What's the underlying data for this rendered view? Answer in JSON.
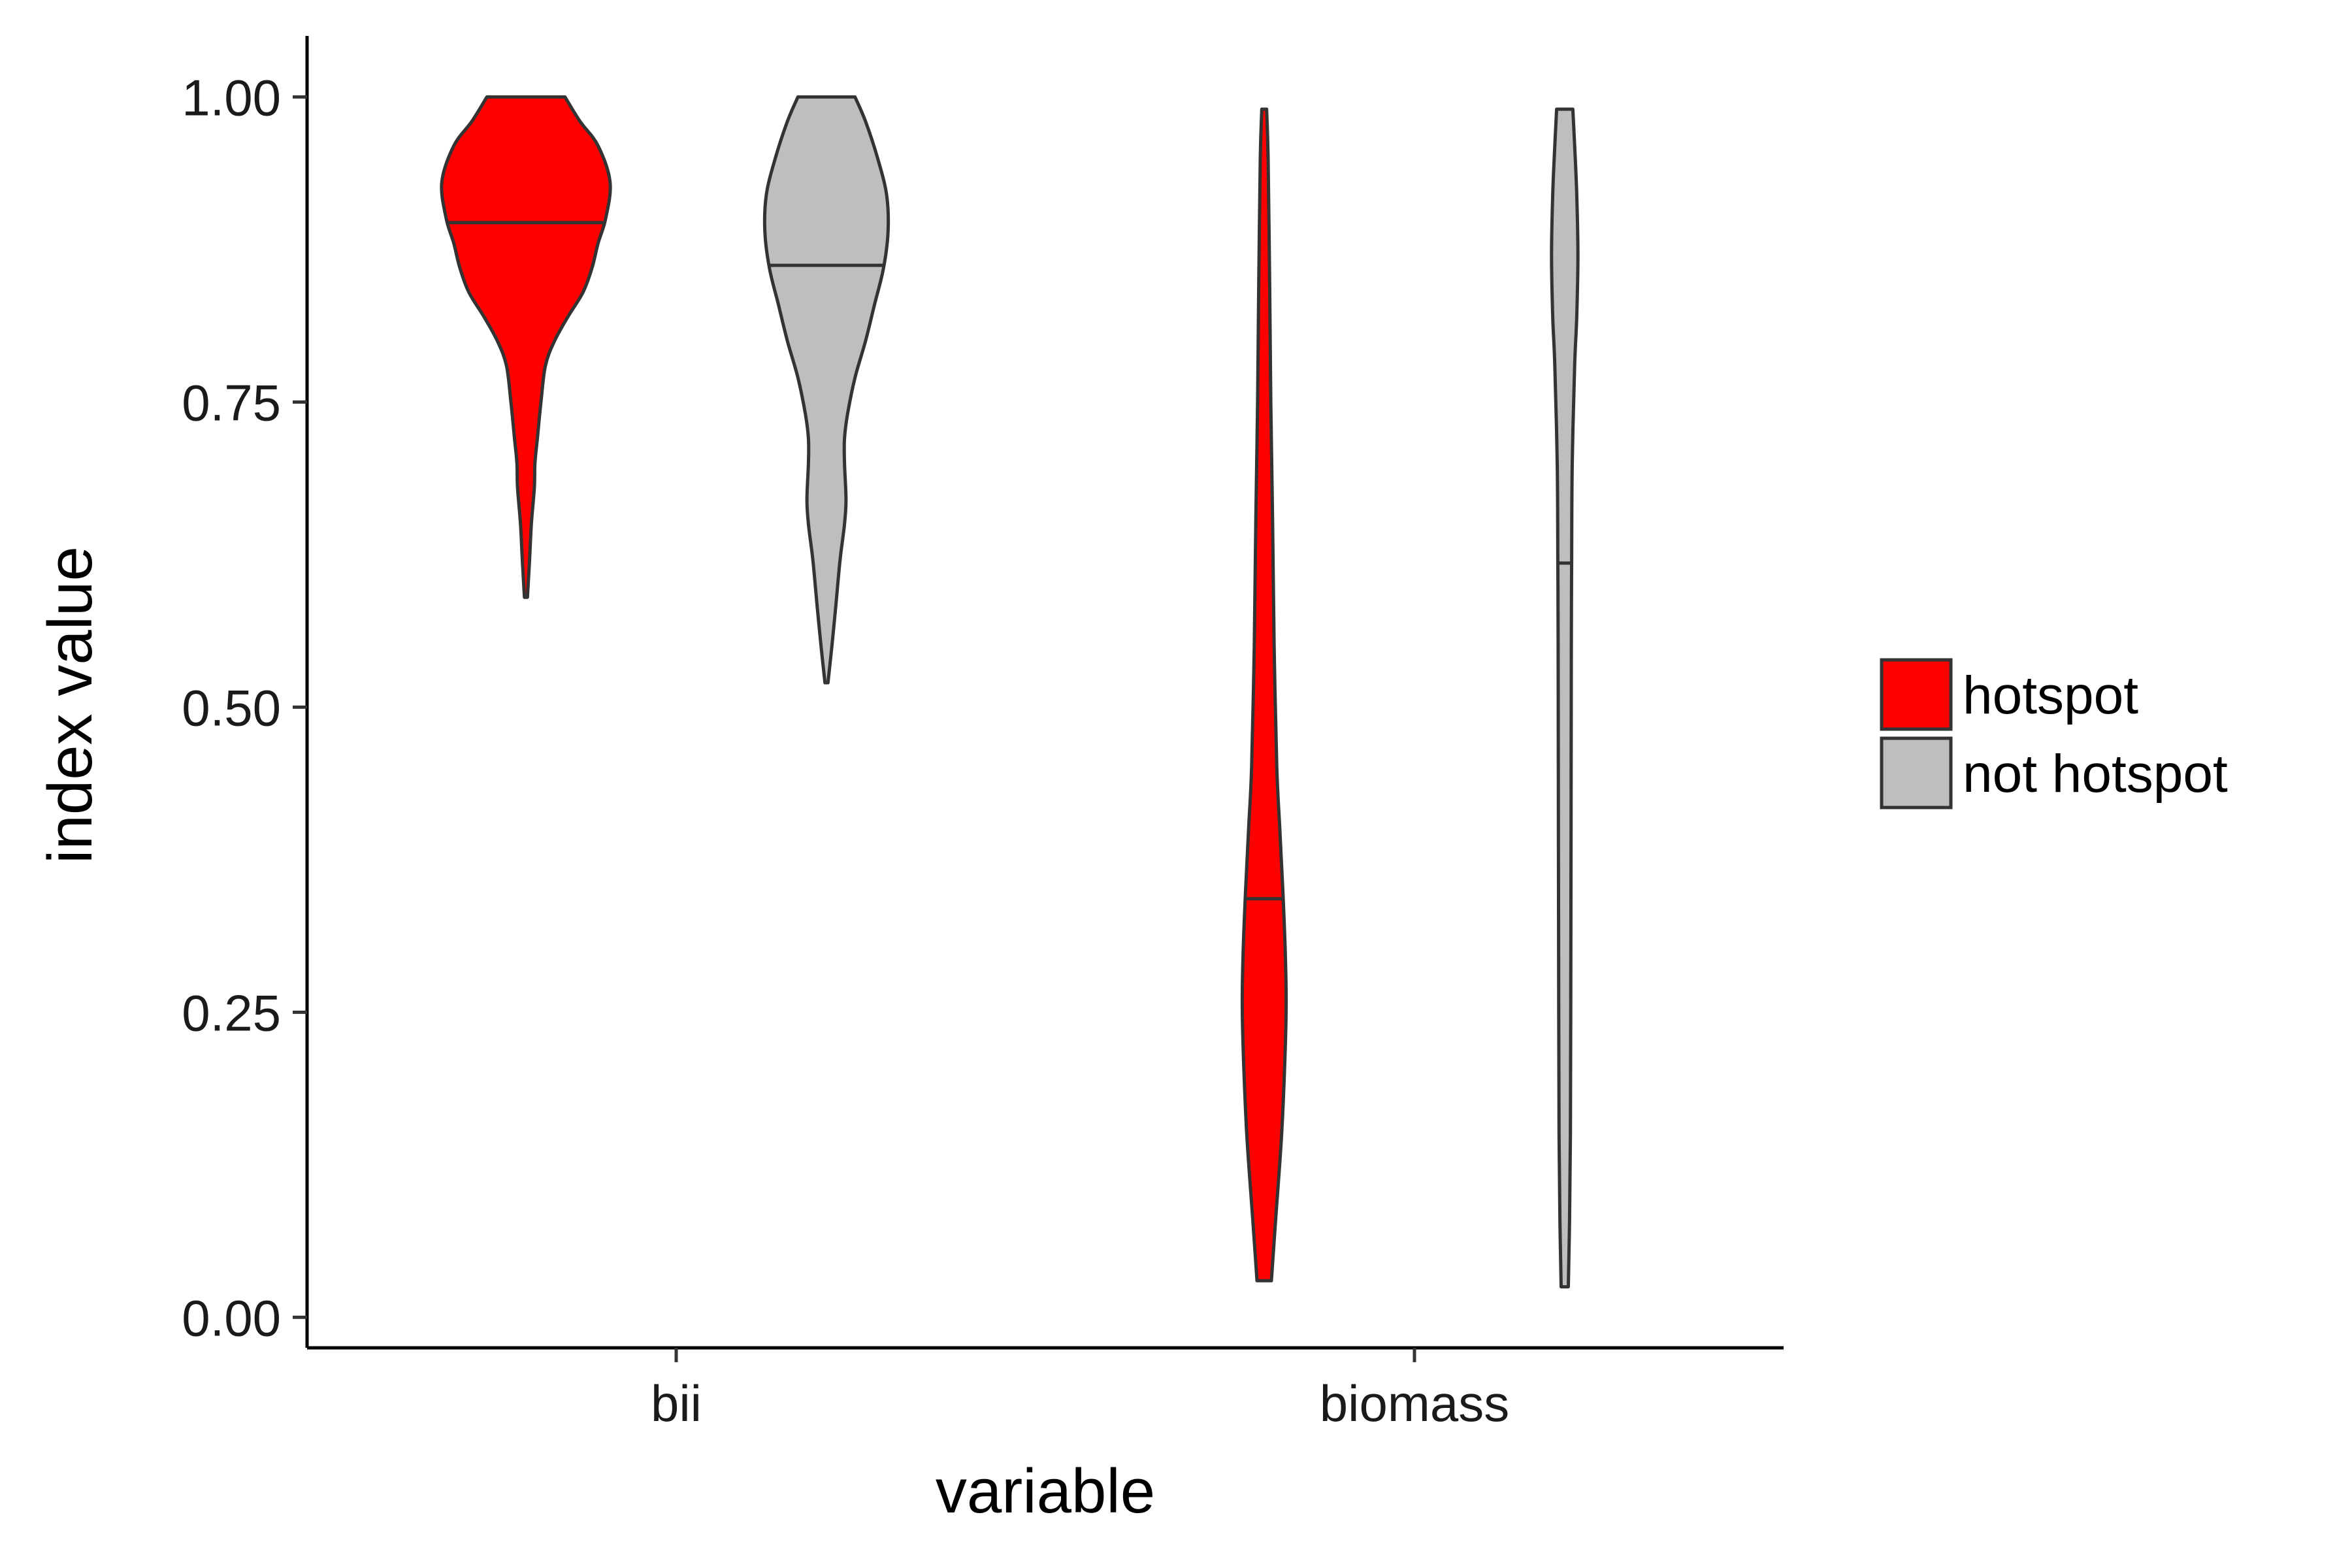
{
  "chart_data": {
    "type": "violin",
    "xlabel": "variable",
    "ylabel": "index value",
    "categories": [
      "bii",
      "biomass"
    ],
    "ylim": [
      -0.025,
      1.05
    ],
    "yticks": [
      0.0,
      0.25,
      0.5,
      0.75,
      1.0
    ],
    "ytick_labels": [
      "0.00",
      "0.25",
      "0.50",
      "0.75",
      "1.00"
    ],
    "grid": false,
    "legend_position": "right",
    "groups": [
      {
        "name": "hotspot",
        "color": "#ff0000"
      },
      {
        "name": "not hotspot",
        "color": "#bebebe"
      }
    ],
    "violins": [
      {
        "category": "bii",
        "group": "hotspot",
        "min": 0.59,
        "max": 1.0,
        "median": 0.897,
        "density": [
          [
            0.59,
            0.005
          ],
          [
            0.62,
            0.012
          ],
          [
            0.65,
            0.018
          ],
          [
            0.68,
            0.028
          ],
          [
            0.7,
            0.03
          ],
          [
            0.72,
            0.038
          ],
          [
            0.75,
            0.05
          ],
          [
            0.78,
            0.065
          ],
          [
            0.8,
            0.095
          ],
          [
            0.82,
            0.14
          ],
          [
            0.84,
            0.19
          ],
          [
            0.86,
            0.22
          ],
          [
            0.88,
            0.24
          ],
          [
            0.9,
            0.265
          ],
          [
            0.93,
            0.28
          ],
          [
            0.96,
            0.24
          ],
          [
            0.98,
            0.18
          ],
          [
            1.0,
            0.13
          ]
        ]
      },
      {
        "category": "bii",
        "group": "not hotspot",
        "min": 0.52,
        "max": 1.0,
        "median": 0.862,
        "density": [
          [
            0.52,
            0.005
          ],
          [
            0.55,
            0.018
          ],
          [
            0.58,
            0.03
          ],
          [
            0.62,
            0.045
          ],
          [
            0.65,
            0.06
          ],
          [
            0.67,
            0.065
          ],
          [
            0.7,
            0.06
          ],
          [
            0.72,
            0.06
          ],
          [
            0.74,
            0.07
          ],
          [
            0.77,
            0.095
          ],
          [
            0.8,
            0.13
          ],
          [
            0.83,
            0.16
          ],
          [
            0.86,
            0.19
          ],
          [
            0.89,
            0.205
          ],
          [
            0.92,
            0.2
          ],
          [
            0.95,
            0.17
          ],
          [
            0.98,
            0.13
          ],
          [
            1.0,
            0.095
          ]
        ]
      },
      {
        "category": "biomass",
        "group": "hotspot",
        "min": 0.03,
        "max": 0.99,
        "median": 0.343,
        "density": [
          [
            0.03,
            0.024
          ],
          [
            0.08,
            0.038
          ],
          [
            0.15,
            0.058
          ],
          [
            0.22,
            0.07
          ],
          [
            0.26,
            0.073
          ],
          [
            0.3,
            0.07
          ],
          [
            0.35,
            0.062
          ],
          [
            0.4,
            0.052
          ],
          [
            0.45,
            0.042
          ],
          [
            0.55,
            0.033
          ],
          [
            0.65,
            0.028
          ],
          [
            0.75,
            0.022
          ],
          [
            0.85,
            0.018
          ],
          [
            0.95,
            0.013
          ],
          [
            0.99,
            0.008
          ]
        ]
      },
      {
        "category": "biomass",
        "group": "not hotspot",
        "min": 0.025,
        "max": 0.99,
        "median": 0.618,
        "density": [
          [
            0.025,
            0.012
          ],
          [
            0.08,
            0.016
          ],
          [
            0.15,
            0.019
          ],
          [
            0.25,
            0.02
          ],
          [
            0.4,
            0.021
          ],
          [
            0.55,
            0.022
          ],
          [
            0.62,
            0.023
          ],
          [
            0.7,
            0.025
          ],
          [
            0.78,
            0.033
          ],
          [
            0.82,
            0.04
          ],
          [
            0.87,
            0.044
          ],
          [
            0.92,
            0.04
          ],
          [
            0.96,
            0.033
          ],
          [
            0.99,
            0.027
          ]
        ]
      }
    ]
  }
}
